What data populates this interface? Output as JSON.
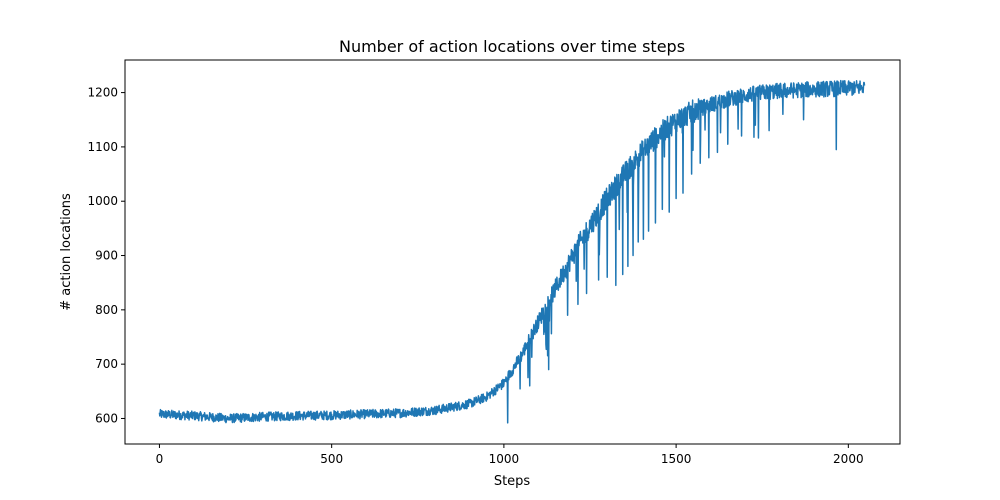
{
  "chart_data": {
    "type": "line",
    "title": "Number of action locations over time steps",
    "xlabel": "Steps",
    "ylabel": "# action locations",
    "xlim": [
      -100,
      2150
    ],
    "ylim": [
      553,
      1260
    ],
    "xticks": [
      0,
      500,
      1000,
      1500,
      2000
    ],
    "yticks": [
      600,
      700,
      800,
      900,
      1000,
      1100,
      1200
    ],
    "grid": false,
    "legend": "none",
    "series": [
      {
        "color": "#1f77b4",
        "n_points": 2048,
        "trend": [
          [
            0,
            608
          ],
          [
            100,
            605
          ],
          [
            200,
            600
          ],
          [
            300,
            603
          ],
          [
            400,
            605
          ],
          [
            500,
            606
          ],
          [
            600,
            608
          ],
          [
            700,
            610
          ],
          [
            800,
            615
          ],
          [
            900,
            627
          ],
          [
            950,
            640
          ],
          [
            1000,
            665
          ],
          [
            1050,
            715
          ],
          [
            1100,
            778
          ],
          [
            1150,
            840
          ],
          [
            1200,
            900
          ],
          [
            1250,
            955
          ],
          [
            1300,
            1005
          ],
          [
            1350,
            1050
          ],
          [
            1400,
            1090
          ],
          [
            1450,
            1123
          ],
          [
            1500,
            1148
          ],
          [
            1550,
            1166
          ],
          [
            1600,
            1178
          ],
          [
            1650,
            1188
          ],
          [
            1700,
            1195
          ],
          [
            1750,
            1200
          ],
          [
            1800,
            1203
          ],
          [
            1900,
            1206
          ],
          [
            2000,
            1208
          ],
          [
            2047,
            1210
          ]
        ],
        "noise_amplitude": 14,
        "dips": [
          [
            1075,
            660
          ],
          [
            1130,
            690
          ],
          [
            1185,
            790
          ],
          [
            1215,
            810
          ],
          [
            1240,
            830
          ],
          [
            1275,
            855
          ],
          [
            1300,
            860
          ],
          [
            1325,
            845
          ],
          [
            1345,
            865
          ],
          [
            1360,
            880
          ],
          [
            1375,
            900
          ],
          [
            1390,
            925
          ],
          [
            1405,
            930
          ],
          [
            1420,
            945
          ],
          [
            1440,
            960
          ],
          [
            1460,
            985
          ],
          [
            1480,
            980
          ],
          [
            1500,
            1005
          ],
          [
            1520,
            1015
          ],
          [
            1545,
            1050
          ],
          [
            1570,
            1070
          ],
          [
            1595,
            1080
          ],
          [
            1620,
            1090
          ],
          [
            1650,
            1105
          ],
          [
            1690,
            1120
          ],
          [
            1730,
            1140
          ],
          [
            1770,
            1130
          ],
          [
            1810,
            1160
          ],
          [
            1870,
            1150
          ],
          [
            1965,
            1095
          ]
        ]
      }
    ]
  }
}
